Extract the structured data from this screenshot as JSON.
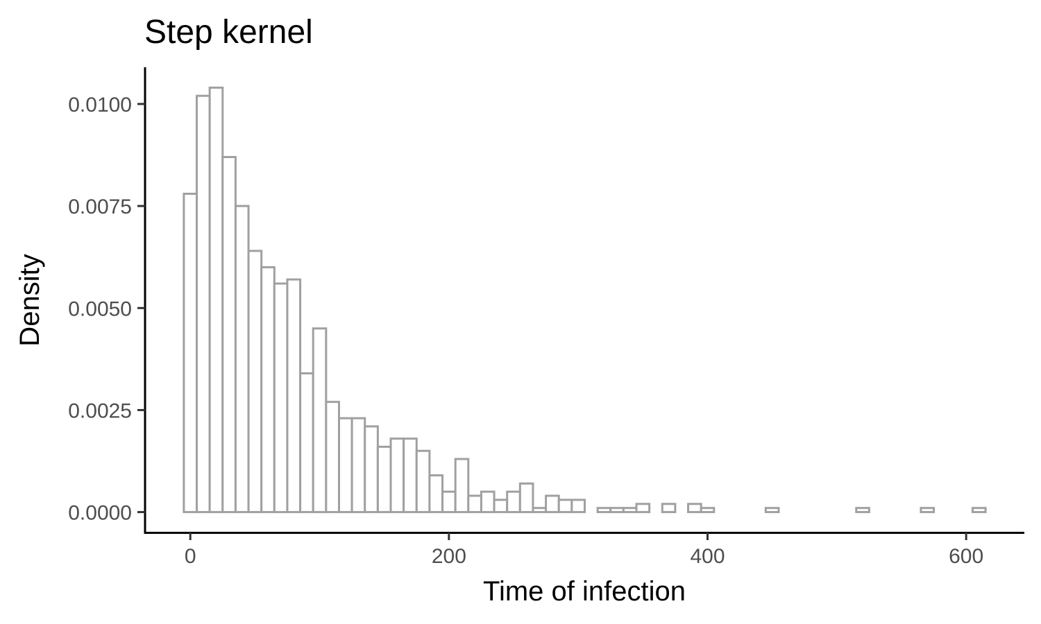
{
  "chart_data": {
    "type": "bar",
    "title": "Step kernel",
    "xlabel": "Time of infection",
    "ylabel": "Density",
    "xlim": [
      -35,
      645
    ],
    "ylim": [
      -0.0005,
      0.0109
    ],
    "x_ticks": [
      0,
      200,
      400,
      600
    ],
    "x_tick_labels": [
      "0",
      "200",
      "400",
      "600"
    ],
    "y_ticks": [
      0,
      0.0025,
      0.005,
      0.0075,
      0.01
    ],
    "y_tick_labels": [
      "0.0000",
      "0.0025",
      "0.0050",
      "0.0075",
      "0.0100"
    ],
    "grid": false,
    "legend": "none",
    "bar_color": "#a0a0a0",
    "bin_width": 10,
    "bin_start": -5,
    "values": [
      0.0078,
      0.0102,
      0.0104,
      0.0087,
      0.0075,
      0.0064,
      0.006,
      0.0056,
      0.0057,
      0.0034,
      0.0045,
      0.0027,
      0.0023,
      0.0023,
      0.0021,
      0.0016,
      0.0018,
      0.0018,
      0.0015,
      0.0009,
      0.0005,
      0.0013,
      0.0004,
      0.0005,
      0.0003,
      0.0005,
      0.0007,
      0.0001,
      0.0004,
      0.0003,
      0.0003,
      0.0,
      0.0001,
      0.0001,
      0.0001,
      0.0002,
      0.0,
      0.0002,
      0.0,
      0.0002,
      0.0001,
      0.0,
      0.0,
      0.0,
      0.0,
      0.0001,
      0.0,
      0.0,
      0.0,
      0.0,
      0.0,
      0.0,
      0.0001,
      0.0,
      0.0,
      0.0,
      0.0,
      0.0001,
      0.0,
      0.0,
      0.0,
      0.0001
    ]
  }
}
